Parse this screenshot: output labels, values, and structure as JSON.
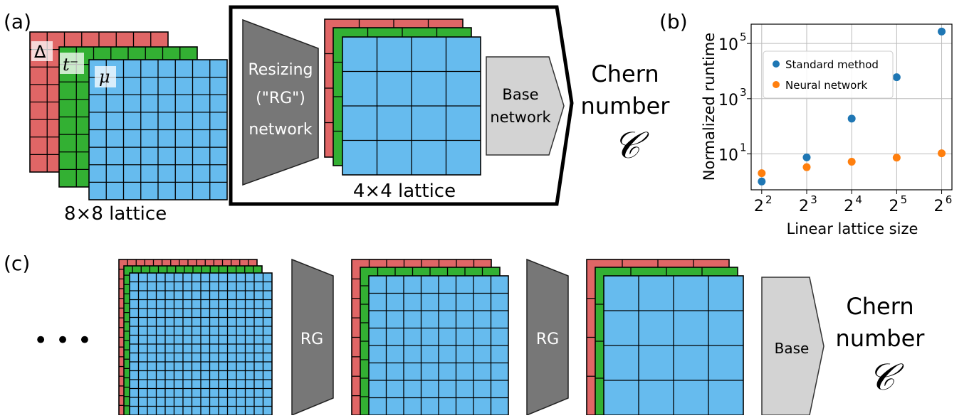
{
  "panel_a": {
    "label": "(a)",
    "channel_labels": {
      "delta": "Δ",
      "t_minus": "t⁻",
      "mu": "μ"
    },
    "lattice_8_label": "8×8 lattice",
    "lattice_4_label": "4×4 lattice",
    "resizing_label_line1": "Resizing",
    "resizing_label_line2": "(\"RG\")",
    "resizing_label_line3": "network",
    "base_label_line1": "Base",
    "base_label_line2": "network",
    "output_line1": "Chern",
    "output_line2": "number",
    "output_symbol": "𝒞"
  },
  "panel_b": {
    "label": "(b)"
  },
  "panel_c": {
    "label": "(c)",
    "ellipsis": "• • •",
    "rg_label": "RG",
    "base_label": "Base",
    "output_line1": "Chern",
    "output_line2": "number",
    "output_symbol": "𝒞"
  },
  "colors": {
    "red": "#e06666",
    "green": "#33b033",
    "blue": "#66bbee",
    "dark_gray": "#777777",
    "light_gray": "#d3d3d3",
    "std_method": "#1f77b4",
    "neural": "#ff7f0e"
  },
  "chart_data": {
    "type": "scatter",
    "xlabel": "Linear lattice size",
    "ylabel": "Normalized runtime",
    "yscale": "log",
    "x_tick_labels": [
      {
        "base": "2",
        "exp": "2"
      },
      {
        "base": "2",
        "exp": "3"
      },
      {
        "base": "2",
        "exp": "4"
      },
      {
        "base": "2",
        "exp": "5"
      },
      {
        "base": "2",
        "exp": "6"
      }
    ],
    "y_tick_labels": [
      {
        "value": 10,
        "base": "10",
        "exp": "1"
      },
      {
        "value": 1000,
        "base": "10",
        "exp": "3"
      },
      {
        "value": 100000,
        "base": "10",
        "exp": "5"
      }
    ],
    "x": [
      4,
      8,
      16,
      32,
      64
    ],
    "ylim": [
      0.5,
      500000
    ],
    "series": [
      {
        "name": "Standard method",
        "values": [
          1.0,
          7.5,
          190,
          6000,
          270000
        ],
        "color": "#1f77b4"
      },
      {
        "name": "Neural network",
        "values": [
          2.0,
          3.3,
          5.2,
          7.3,
          10.5
        ],
        "color": "#ff7f0e"
      }
    ],
    "grid": true,
    "legend_position": "upper-left"
  }
}
